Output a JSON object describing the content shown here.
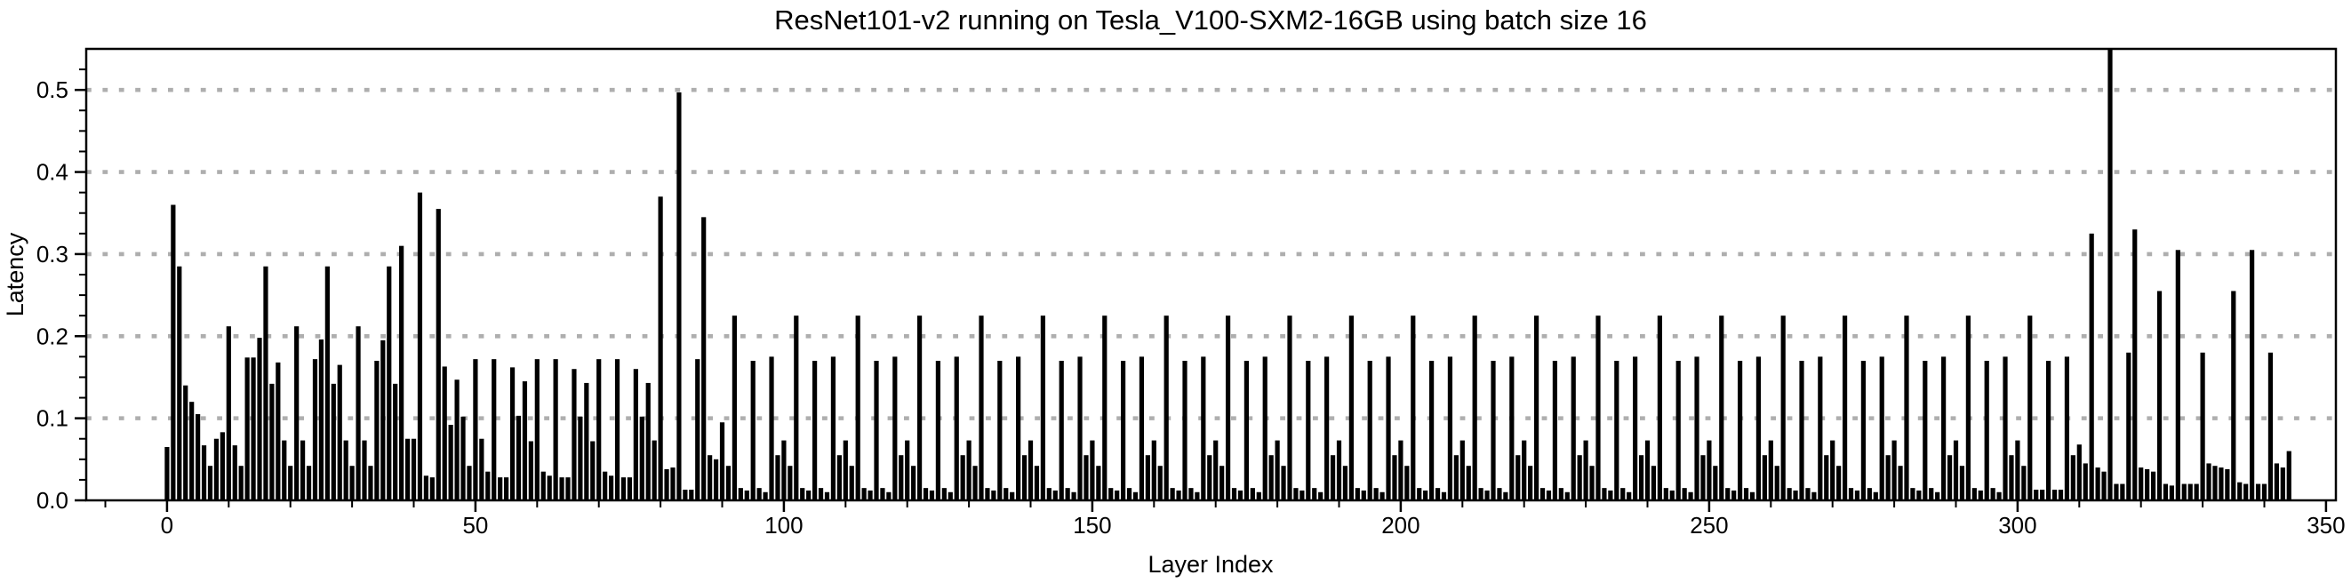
{
  "page": {
    "background_color": "#ffffff",
    "text_color": "#000000"
  },
  "chart_data": {
    "type": "bar",
    "title": "ResNet101-v2 running on Tesla_V100-SXM2-16GB using batch size 16",
    "xlabel": "Layer Index",
    "ylabel": "Latency",
    "bar_color": "#000000",
    "grid_color": "#aeaeae",
    "frame_color": "#000000",
    "grid_style": "dotted horizontal lines at each labeled y tick",
    "legend": "none",
    "xlim": [
      -13.1,
      351.6
    ],
    "ylim": [
      0,
      0.55
    ],
    "x_ticks": [
      0,
      50,
      100,
      150,
      200,
      250,
      300,
      350
    ],
    "x_tick_labels": [
      "0",
      "50",
      "100",
      "150",
      "200",
      "250",
      "300",
      "350"
    ],
    "x_minor_tick_step": 10,
    "y_ticks": [
      0.0,
      0.1,
      0.2,
      0.3,
      0.4,
      0.5
    ],
    "y_tick_labels": [
      "0.0",
      "0.1",
      "0.2",
      "0.3",
      "0.4",
      "0.5"
    ],
    "y_minor_tick_step": 0.025,
    "x_start_index": 0,
    "values": [
      0.065,
      0.36,
      0.285,
      0.14,
      0.12,
      0.105,
      0.067,
      0.042,
      0.075,
      0.083,
      0.212,
      0.067,
      0.042,
      0.174,
      0.174,
      0.198,
      0.285,
      0.142,
      0.168,
      0.073,
      0.042,
      0.212,
      0.073,
      0.042,
      0.172,
      0.196,
      0.285,
      0.142,
      0.165,
      0.073,
      0.042,
      0.212,
      0.073,
      0.042,
      0.17,
      0.195,
      0.285,
      0.142,
      0.31,
      0.075,
      0.075,
      0.375,
      0.03,
      0.028,
      0.355,
      0.163,
      0.092,
      0.147,
      0.102,
      0.042,
      0.172,
      0.075,
      0.035,
      0.172,
      0.028,
      0.028,
      0.162,
      0.103,
      0.145,
      0.072,
      0.172,
      0.035,
      0.03,
      0.172,
      0.028,
      0.028,
      0.16,
      0.102,
      0.143,
      0.072,
      0.172,
      0.035,
      0.03,
      0.172,
      0.028,
      0.028,
      0.16,
      0.102,
      0.143,
      0.073,
      0.37,
      0.038,
      0.04,
      0.497,
      0.013,
      0.013,
      0.172,
      0.345,
      0.055,
      0.05,
      0.095,
      0.042,
      0.225,
      0.015,
      0.012,
      0.17,
      0.015,
      0.01,
      0.175,
      0.055,
      0.073,
      0.042,
      0.225,
      0.015,
      0.012,
      0.17,
      0.015,
      0.01,
      0.175,
      0.055,
      0.073,
      0.042,
      0.225,
      0.015,
      0.012,
      0.17,
      0.015,
      0.01,
      0.175,
      0.055,
      0.073,
      0.042,
      0.225,
      0.015,
      0.012,
      0.17,
      0.015,
      0.01,
      0.175,
      0.055,
      0.073,
      0.042,
      0.225,
      0.015,
      0.012,
      0.17,
      0.015,
      0.01,
      0.175,
      0.055,
      0.073,
      0.042,
      0.225,
      0.015,
      0.012,
      0.17,
      0.015,
      0.01,
      0.175,
      0.055,
      0.073,
      0.042,
      0.225,
      0.015,
      0.012,
      0.17,
      0.015,
      0.01,
      0.175,
      0.055,
      0.073,
      0.042,
      0.225,
      0.015,
      0.012,
      0.17,
      0.015,
      0.01,
      0.175,
      0.055,
      0.073,
      0.042,
      0.225,
      0.015,
      0.012,
      0.17,
      0.015,
      0.01,
      0.175,
      0.055,
      0.073,
      0.042,
      0.225,
      0.015,
      0.012,
      0.17,
      0.015,
      0.01,
      0.175,
      0.055,
      0.073,
      0.042,
      0.225,
      0.015,
      0.012,
      0.17,
      0.015,
      0.01,
      0.175,
      0.055,
      0.073,
      0.042,
      0.225,
      0.015,
      0.012,
      0.17,
      0.015,
      0.01,
      0.175,
      0.055,
      0.073,
      0.042,
      0.225,
      0.015,
      0.012,
      0.17,
      0.015,
      0.01,
      0.175,
      0.055,
      0.073,
      0.042,
      0.225,
      0.015,
      0.012,
      0.17,
      0.015,
      0.01,
      0.175,
      0.055,
      0.073,
      0.042,
      0.225,
      0.015,
      0.012,
      0.17,
      0.015,
      0.01,
      0.175,
      0.055,
      0.073,
      0.042,
      0.225,
      0.015,
      0.012,
      0.17,
      0.015,
      0.01,
      0.175,
      0.055,
      0.073,
      0.042,
      0.225,
      0.015,
      0.012,
      0.17,
      0.015,
      0.01,
      0.175,
      0.055,
      0.073,
      0.042,
      0.225,
      0.015,
      0.012,
      0.17,
      0.015,
      0.01,
      0.175,
      0.055,
      0.073,
      0.042,
      0.225,
      0.015,
      0.012,
      0.17,
      0.015,
      0.01,
      0.175,
      0.055,
      0.073,
      0.042,
      0.225,
      0.015,
      0.012,
      0.17,
      0.015,
      0.01,
      0.175,
      0.055,
      0.073,
      0.042,
      0.225,
      0.015,
      0.012,
      0.17,
      0.015,
      0.01,
      0.175,
      0.055,
      0.073,
      0.042,
      0.225,
      0.013,
      0.013,
      0.17,
      0.013,
      0.013,
      0.175,
      0.055,
      0.068,
      0.045,
      0.325,
      0.04,
      0.035,
      0.55,
      0.02,
      0.02,
      0.18,
      0.33,
      0.04,
      0.038,
      0.035,
      0.255,
      0.02,
      0.018,
      0.305,
      0.02,
      0.02,
      0.02,
      0.18,
      0.045,
      0.042,
      0.04,
      0.038,
      0.255,
      0.022,
      0.02,
      0.305,
      0.02,
      0.02,
      0.18,
      0.045,
      0.04,
      0.06
    ]
  }
}
